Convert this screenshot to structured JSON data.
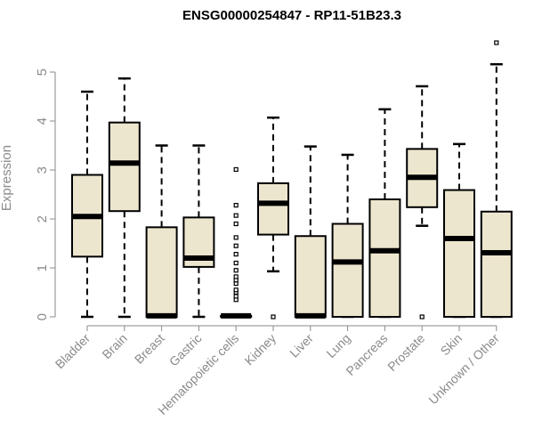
{
  "chart_data": {
    "type": "box",
    "title": "ENSG00000254847 - RP11-51B23.3",
    "xlabel": "",
    "ylabel": "Expression",
    "ylim": [
      0,
      5.8
    ],
    "yticks": [
      0,
      1,
      2,
      3,
      4,
      5
    ],
    "grid": false,
    "box_fill": "#ede6cf",
    "categories": [
      "Bladder",
      "Brain",
      "Breast",
      "Gastric",
      "Hematopoietic cells",
      "Kidney",
      "Liver",
      "Lung",
      "Pancreas",
      "Prostate",
      "Skin",
      "Unknown / Other"
    ],
    "boxes": [
      {
        "whisker_low": 0,
        "q1": 1.23,
        "median": 2.05,
        "q3": 2.9,
        "whisker_high": 4.6,
        "outliers": []
      },
      {
        "whisker_low": 0,
        "q1": 2.16,
        "median": 3.14,
        "q3": 3.97,
        "whisker_high": 4.87,
        "outliers": []
      },
      {
        "whisker_low": 0,
        "q1": 0,
        "median": 0.02,
        "q3": 1.83,
        "whisker_high": 3.5,
        "outliers": []
      },
      {
        "whisker_low": 0,
        "q1": 1.02,
        "median": 1.2,
        "q3": 2.03,
        "whisker_high": 3.5,
        "outliers": []
      },
      {
        "whisker_low": 0,
        "q1": 0,
        "median": 0.02,
        "q3": 0.02,
        "whisker_high": 0.02,
        "outliers": [
          0.35,
          0.42,
          0.5,
          0.55,
          0.68,
          0.75,
          0.82,
          0.95,
          1.1,
          1.28,
          1.45,
          1.62,
          1.9,
          2.07,
          2.28,
          3.01
        ]
      },
      {
        "whisker_low": 0.93,
        "q1": 1.68,
        "median": 2.32,
        "q3": 2.73,
        "whisker_high": 4.07,
        "outliers": [
          0
        ]
      },
      {
        "whisker_low": 0,
        "q1": 0,
        "median": 0.02,
        "q3": 1.65,
        "whisker_high": 3.48,
        "outliers": []
      },
      {
        "whisker_low": 0,
        "q1": 0,
        "median": 1.12,
        "q3": 1.9,
        "whisker_high": 3.31,
        "outliers": []
      },
      {
        "whisker_low": 0,
        "q1": 0,
        "median": 1.35,
        "q3": 2.4,
        "whisker_high": 4.24,
        "outliers": []
      },
      {
        "whisker_low": 1.86,
        "q1": 2.24,
        "median": 2.85,
        "q3": 3.43,
        "whisker_high": 4.71,
        "outliers": [
          0
        ]
      },
      {
        "whisker_low": 0,
        "q1": 0,
        "median": 1.6,
        "q3": 2.59,
        "whisker_high": 3.53,
        "outliers": []
      },
      {
        "whisker_low": 0,
        "q1": 0,
        "median": 1.31,
        "q3": 2.15,
        "whisker_high": 5.16,
        "outliers": [
          5.6
        ]
      }
    ]
  }
}
